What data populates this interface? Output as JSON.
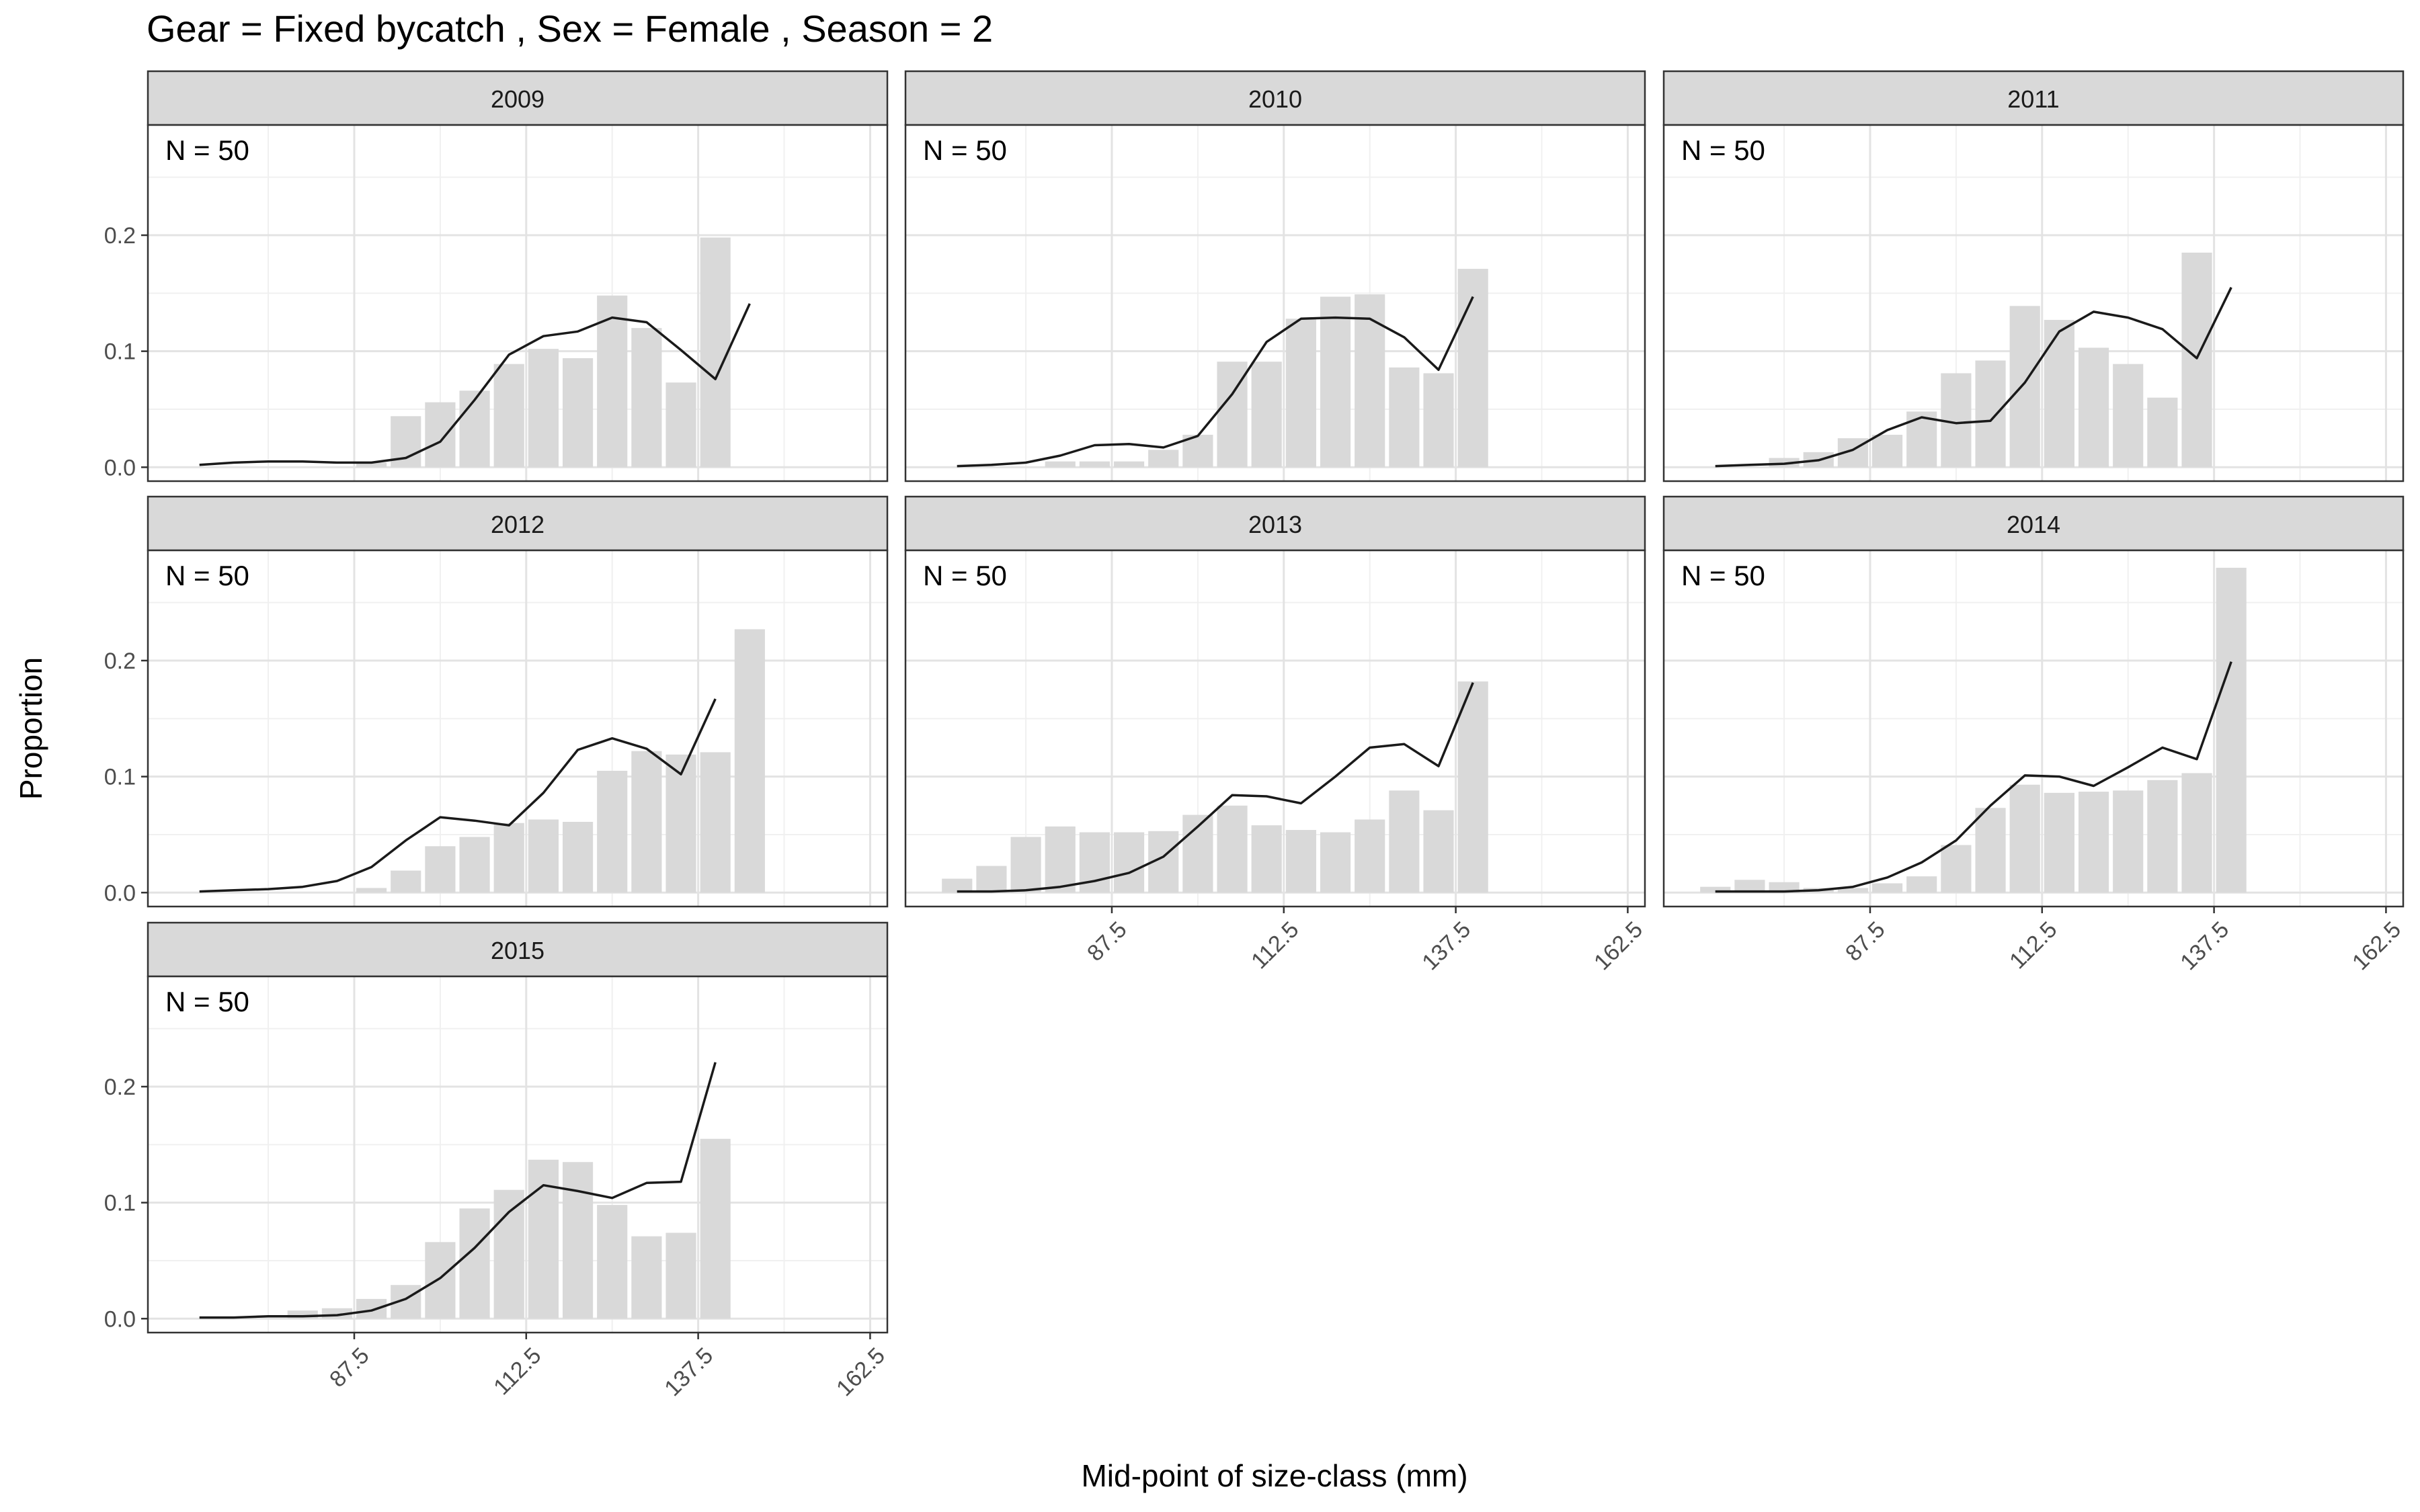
{
  "chart_data": {
    "type": "bar",
    "title": "Gear = Fixed bycatch , Sex = Female , Season = 2",
    "xlabel": "Mid-point of size-class (mm)",
    "ylabel": "Proportion",
    "xlim": [
      57.5,
      165
    ],
    "ylim": [
      -0.012,
      0.295
    ],
    "x_ticks": [
      87.5,
      112.5,
      137.5,
      162.5
    ],
    "x_tick_labels": [
      "87.5",
      "112.5",
      "137.5",
      "162.5"
    ],
    "y_ticks": [
      0.0,
      0.1,
      0.2
    ],
    "y_tick_labels": [
      "0.0",
      "0.1",
      "0.2"
    ],
    "grid": true,
    "bar_color": "#d9d9d9",
    "line_color": "#1a1a1a",
    "strip_fill": "#d9d9d9",
    "x": [
      65,
      70,
      75,
      80,
      85,
      90,
      95,
      100,
      105,
      110,
      115,
      120,
      125,
      130,
      135,
      140,
      145
    ],
    "panels": [
      {
        "year": "2009",
        "annotation": "N = 50",
        "observed": [
          0,
          0,
          0,
          0,
          0,
          0.004,
          0.044,
          0.056,
          0.066,
          0.089,
          0.102,
          0.094,
          0.148,
          0.12,
          0.073,
          0.198,
          0
        ],
        "expected": [
          0.002,
          0.004,
          0.005,
          0.005,
          0.004,
          0.004,
          0.008,
          0.022,
          0.058,
          0.097,
          0.113,
          0.117,
          0.129,
          0.125,
          0.101,
          0.076,
          0.141
        ]
      },
      {
        "year": "2010",
        "annotation": "N = 50",
        "observed": [
          0,
          0,
          0,
          0.005,
          0.005,
          0.005,
          0.015,
          0.028,
          0.091,
          0.091,
          0.128,
          0.147,
          0.149,
          0.086,
          0.081,
          0.171,
          0
        ],
        "expected": [
          0.001,
          0.002,
          0.004,
          0.01,
          0.019,
          0.02,
          0.017,
          0.027,
          0.063,
          0.108,
          0.128,
          0.129,
          0.128,
          0.112,
          0.084,
          0.147,
          0
        ]
      },
      {
        "year": "2011",
        "annotation": "N = 50",
        "observed": [
          0,
          0,
          0.008,
          0.013,
          0.025,
          0.028,
          0.048,
          0.081,
          0.092,
          0.139,
          0.127,
          0.103,
          0.089,
          0.06,
          0.185,
          0,
          0
        ],
        "expected": [
          0.001,
          0.002,
          0.003,
          0.006,
          0.015,
          0.032,
          0.043,
          0.038,
          0.04,
          0.073,
          0.117,
          0.134,
          0.129,
          0.119,
          0.094,
          0.155,
          0
        ]
      },
      {
        "year": "2012",
        "annotation": "N = 50",
        "observed": [
          0,
          0,
          0,
          0,
          0,
          0.004,
          0.019,
          0.04,
          0.048,
          0.06,
          0.063,
          0.061,
          0.105,
          0.122,
          0.119,
          0.121,
          0.227
        ],
        "expected": [
          0.001,
          0.002,
          0.003,
          0.005,
          0.01,
          0.022,
          0.045,
          0.065,
          0.062,
          0.058,
          0.086,
          0.123,
          0.133,
          0.124,
          0.102,
          0.167,
          0
        ]
      },
      {
        "year": "2013",
        "annotation": "N = 50",
        "observed": [
          0.012,
          0.023,
          0.048,
          0.057,
          0.052,
          0.052,
          0.053,
          0.067,
          0.075,
          0.058,
          0.054,
          0.052,
          0.063,
          0.088,
          0.071,
          0.182,
          0
        ],
        "expected": [
          0.001,
          0.001,
          0.002,
          0.005,
          0.01,
          0.017,
          0.031,
          0.057,
          0.084,
          0.083,
          0.077,
          0.1,
          0.125,
          0.128,
          0.109,
          0.181,
          0
        ]
      },
      {
        "year": "2014",
        "annotation": "N = 50",
        "observed": [
          0.005,
          0.011,
          0.009,
          0.004,
          0.004,
          0.008,
          0.014,
          0.041,
          0.073,
          0.093,
          0.086,
          0.087,
          0.088,
          0.097,
          0.103,
          0.28,
          0
        ],
        "expected": [
          0.001,
          0.001,
          0.001,
          0.002,
          0.005,
          0.013,
          0.026,
          0.045,
          0.075,
          0.101,
          0.1,
          0.092,
          0.108,
          0.125,
          0.115,
          0.199,
          0
        ]
      },
      {
        "year": "2015",
        "annotation": "N = 50",
        "observed": [
          0,
          0,
          0,
          0.007,
          0.009,
          0.017,
          0.029,
          0.066,
          0.095,
          0.111,
          0.137,
          0.135,
          0.098,
          0.071,
          0.074,
          0.155,
          0
        ],
        "expected": [
          0.001,
          0.001,
          0.002,
          0.002,
          0.003,
          0.007,
          0.017,
          0.035,
          0.061,
          0.092,
          0.115,
          0.11,
          0.104,
          0.117,
          0.118,
          0.221,
          0
        ]
      }
    ]
  }
}
